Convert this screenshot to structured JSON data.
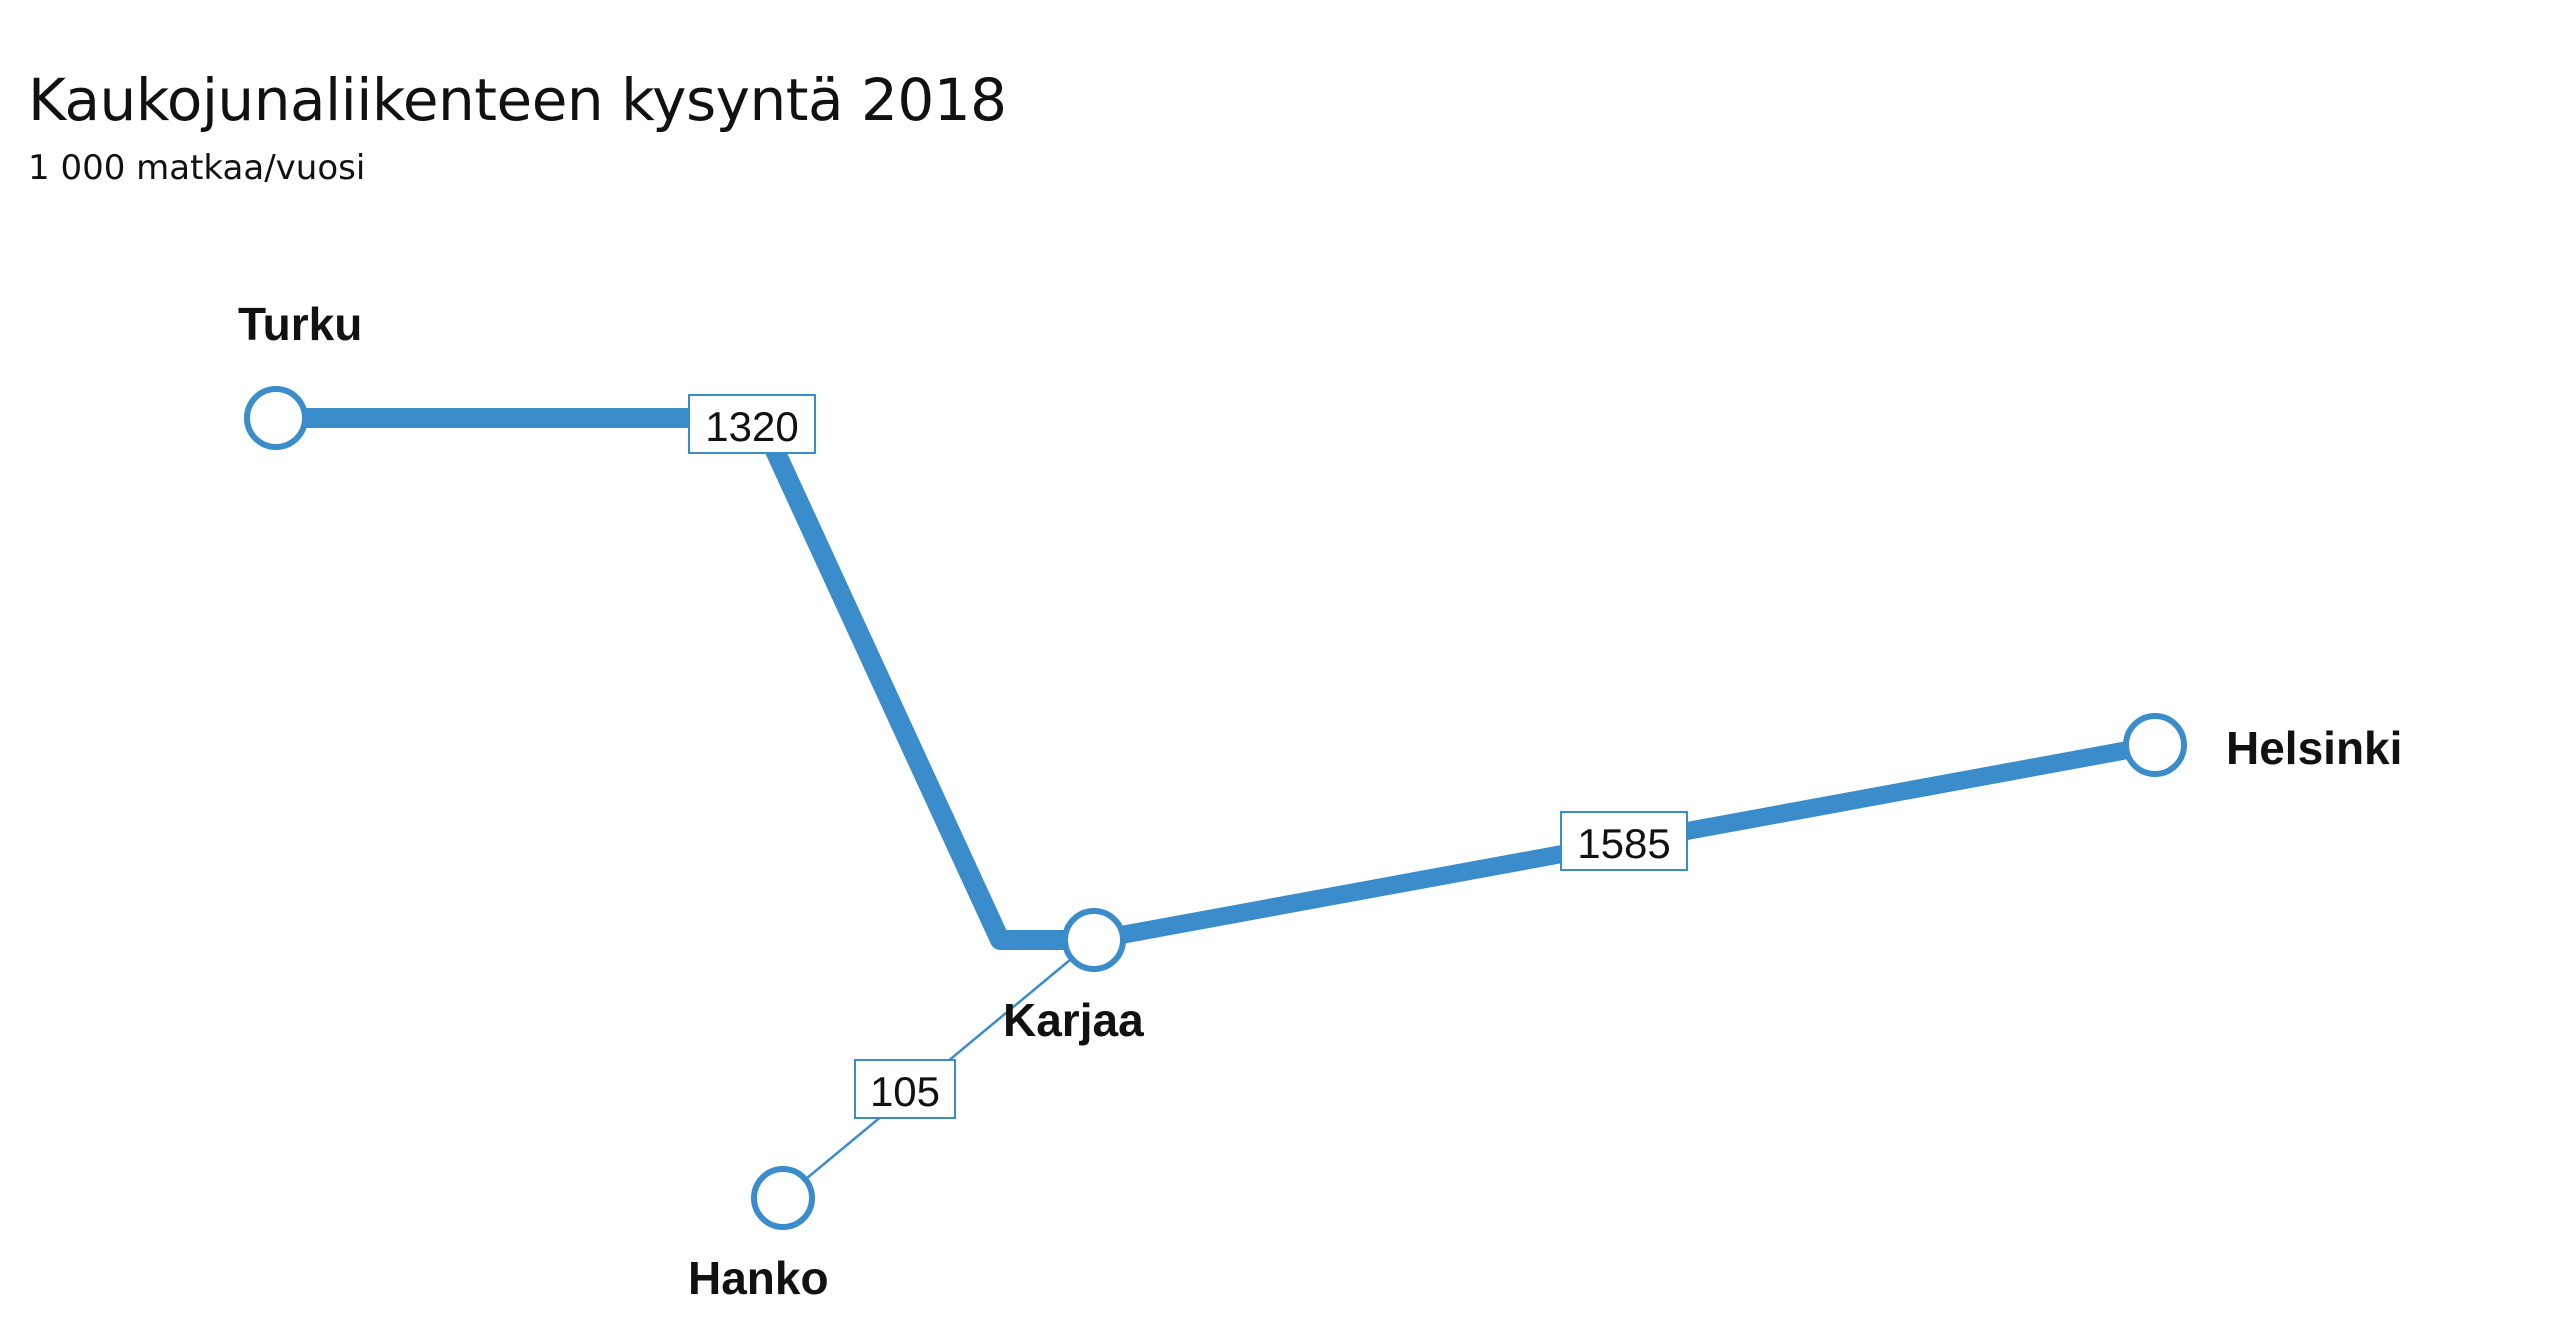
{
  "title": "Kaukojunaliikenteen kysyntä 2018",
  "subtitle": "1 000 matkaa/vuosi",
  "colors": {
    "route": "#3a8cca",
    "node_fill": "#ffffff",
    "text": "#111111"
  },
  "stations": {
    "turku": "Turku",
    "karjaa": "Karjaa",
    "hanko": "Hanko",
    "helsinki": "Helsinki"
  },
  "segments": {
    "turku_karjaa": {
      "value": 1320,
      "label": "1320"
    },
    "karjaa_helsinki": {
      "value": 1585,
      "label": "1585"
    },
    "hanko_karjaa": {
      "value": 105,
      "label": "105"
    }
  }
}
